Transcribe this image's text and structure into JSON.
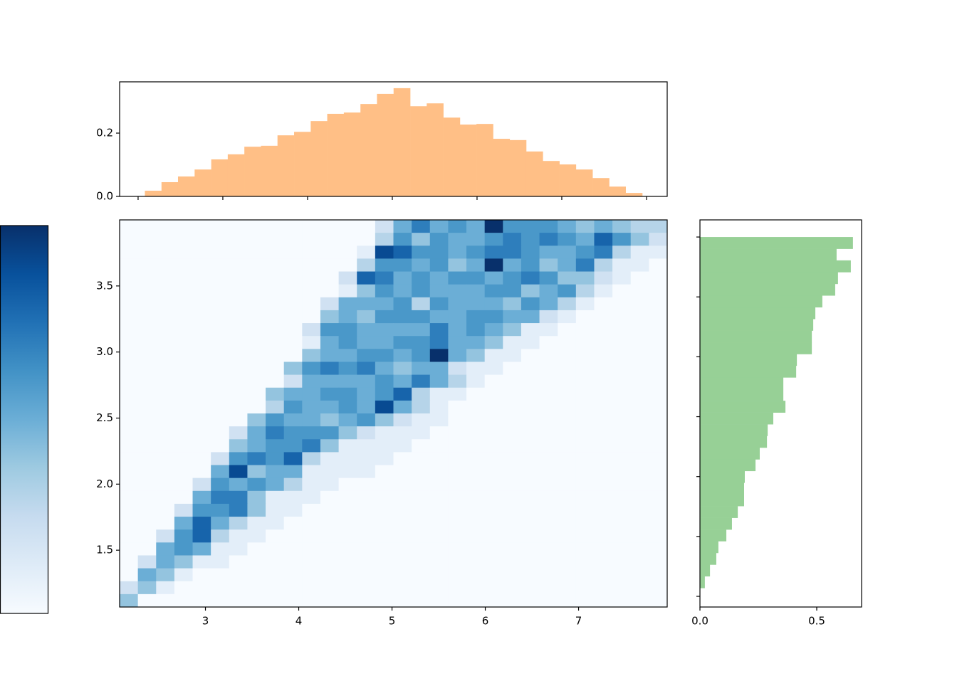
{
  "chart_data": [
    {
      "type": "heatmap",
      "xlim": [
        2.08,
        7.95
      ],
      "ylim": [
        1.07,
        4.0
      ],
      "clim": [
        0,
        10
      ],
      "colormap": [
        "#f7fbff",
        "#deebf7",
        "#c6dbef",
        "#9ecae1",
        "#6baed6",
        "#4292c6",
        "#2171b5",
        "#08519c",
        "#08306b"
      ],
      "colorbar": true,
      "xticks": [
        3,
        4,
        5,
        6,
        7
      ],
      "yticks": [
        1.5,
        {
          "value": 2,
          "label": "2.0"
        },
        2.5,
        {
          "value": 3,
          "label": "3.0"
        },
        3.5
      ],
      "z": [
        [
          0,
          0,
          0,
          0,
          0,
          0,
          0,
          0,
          0,
          0,
          0,
          0,
          0,
          0,
          2,
          5,
          7,
          5,
          6,
          5,
          10,
          6,
          6,
          6,
          5,
          4,
          5,
          4,
          3,
          3
        ],
        [
          0,
          0,
          0,
          0,
          0,
          0,
          0,
          0,
          0,
          0,
          0,
          0,
          0,
          0,
          3,
          6,
          4,
          6,
          5,
          5,
          6,
          7,
          6,
          7,
          6,
          5,
          8,
          6,
          4,
          2
        ],
        [
          0,
          0,
          0,
          0,
          0,
          0,
          0,
          0,
          0,
          0,
          0,
          0,
          0,
          1,
          9,
          8,
          6,
          6,
          5,
          6,
          7,
          7,
          6,
          5,
          5,
          6,
          7,
          3,
          1,
          1
        ],
        [
          0,
          0,
          0,
          0,
          0,
          0,
          0,
          0,
          0,
          0,
          0,
          0,
          0,
          3,
          6,
          6,
          5,
          6,
          4,
          5,
          10,
          5,
          6,
          4,
          5,
          7,
          3,
          1,
          1,
          0
        ],
        [
          0,
          0,
          0,
          0,
          0,
          0,
          0,
          0,
          0,
          0,
          0,
          0,
          2,
          8,
          7,
          5,
          6,
          5,
          6,
          6,
          5,
          6,
          7,
          6,
          4,
          4,
          2,
          1,
          0,
          0
        ],
        [
          0,
          0,
          0,
          0,
          0,
          0,
          0,
          0,
          0,
          0,
          0,
          0,
          1,
          4,
          6,
          5,
          6,
          5,
          5,
          5,
          6,
          6,
          4,
          5,
          6,
          3,
          1,
          0,
          0,
          0
        ],
        [
          0,
          0,
          0,
          0,
          0,
          0,
          0,
          0,
          0,
          0,
          0,
          2,
          5,
          5,
          5,
          6,
          3,
          6,
          5,
          5,
          5,
          4,
          6,
          5,
          3,
          1,
          0,
          0,
          0,
          0
        ],
        [
          0,
          0,
          0,
          0,
          0,
          0,
          0,
          0,
          0,
          0,
          0,
          4,
          5,
          4,
          6,
          6,
          6,
          5,
          5,
          6,
          6,
          5,
          5,
          2,
          1,
          0,
          0,
          0,
          0,
          0
        ],
        [
          0,
          0,
          0,
          0,
          0,
          0,
          0,
          0,
          0,
          0,
          2,
          6,
          6,
          5,
          5,
          5,
          5,
          7,
          5,
          6,
          5,
          4,
          1,
          1,
          0,
          0,
          0,
          0,
          0,
          0
        ],
        [
          0,
          0,
          0,
          0,
          0,
          0,
          0,
          0,
          0,
          0,
          1,
          5,
          6,
          5,
          5,
          6,
          6,
          7,
          5,
          5,
          4,
          1,
          1,
          0,
          0,
          0,
          0,
          0,
          0,
          0
        ],
        [
          0,
          0,
          0,
          0,
          0,
          0,
          0,
          0,
          0,
          0,
          4,
          5,
          5,
          6,
          6,
          5,
          6,
          10,
          5,
          4,
          1,
          1,
          0,
          0,
          0,
          0,
          0,
          0,
          0,
          0
        ],
        [
          0,
          0,
          0,
          0,
          0,
          0,
          0,
          0,
          0,
          4,
          6,
          7,
          6,
          7,
          5,
          4,
          5,
          5,
          2,
          1,
          1,
          0,
          0,
          0,
          0,
          0,
          0,
          0,
          0,
          0
        ],
        [
          0,
          0,
          0,
          0,
          0,
          0,
          0,
          0,
          0,
          2,
          5,
          5,
          5,
          5,
          6,
          5,
          7,
          5,
          3,
          1,
          0,
          0,
          0,
          0,
          0,
          0,
          0,
          0,
          0,
          0
        ],
        [
          0,
          0,
          0,
          0,
          0,
          0,
          0,
          0,
          4,
          5,
          5,
          6,
          6,
          5,
          6,
          8,
          3,
          1,
          1,
          0,
          0,
          0,
          0,
          0,
          0,
          0,
          0,
          0,
          0,
          0
        ],
        [
          0,
          0,
          0,
          0,
          0,
          0,
          0,
          0,
          3,
          6,
          5,
          5,
          6,
          5,
          9,
          5,
          3,
          1,
          0,
          0,
          0,
          0,
          0,
          0,
          0,
          0,
          0,
          0,
          0,
          0
        ],
        [
          0,
          0,
          0,
          0,
          0,
          0,
          0,
          4,
          6,
          5,
          5,
          4,
          5,
          6,
          4,
          2,
          1,
          1,
          0,
          0,
          0,
          0,
          0,
          0,
          0,
          0,
          0,
          0,
          0,
          0
        ],
        [
          0,
          0,
          0,
          0,
          0,
          0,
          2,
          5,
          7,
          6,
          6,
          6,
          4,
          2,
          1,
          1,
          1,
          0,
          0,
          0,
          0,
          0,
          0,
          0,
          0,
          0,
          0,
          0,
          0,
          0
        ],
        [
          0,
          0,
          0,
          0,
          0,
          0,
          4,
          5,
          6,
          6,
          7,
          4,
          1,
          1,
          1,
          1,
          0,
          0,
          0,
          0,
          0,
          0,
          0,
          0,
          0,
          0,
          0,
          0,
          0,
          0
        ],
        [
          0,
          0,
          0,
          0,
          0,
          2,
          6,
          7,
          6,
          8,
          3,
          1,
          1,
          1,
          1,
          0,
          0,
          0,
          0,
          0,
          0,
          0,
          0,
          0,
          0,
          0,
          0,
          0,
          0,
          0
        ],
        [
          0,
          0,
          0,
          0,
          0,
          5,
          9,
          4,
          5,
          5,
          1,
          1,
          1,
          1,
          0,
          0,
          0,
          0,
          0,
          0,
          0,
          0,
          0,
          0,
          0,
          0,
          0,
          0,
          0,
          0
        ],
        [
          0,
          0,
          0,
          0,
          2,
          6,
          5,
          6,
          5,
          3,
          1,
          1,
          0,
          0,
          0,
          0,
          0,
          0,
          0,
          0,
          0,
          0,
          0,
          0,
          0,
          0,
          0,
          0,
          0,
          0
        ],
        [
          0,
          0,
          0,
          0,
          5,
          7,
          7,
          4,
          1,
          1,
          1,
          0,
          0,
          0,
          0,
          0,
          0,
          0,
          0,
          0,
          0,
          0,
          0,
          0,
          0,
          0,
          0,
          0,
          0,
          0
        ],
        [
          0,
          0,
          0,
          2,
          6,
          6,
          7,
          4,
          1,
          1,
          0,
          0,
          0,
          0,
          0,
          0,
          0,
          0,
          0,
          0,
          0,
          0,
          0,
          0,
          0,
          0,
          0,
          0,
          0,
          0
        ],
        [
          0,
          0,
          0,
          5,
          8,
          5,
          3,
          1,
          1,
          0,
          0,
          0,
          0,
          0,
          0,
          0,
          0,
          0,
          0,
          0,
          0,
          0,
          0,
          0,
          0,
          0,
          0,
          0,
          0,
          0
        ],
        [
          0,
          0,
          2,
          6,
          8,
          3,
          1,
          1,
          0,
          0,
          0,
          0,
          0,
          0,
          0,
          0,
          0,
          0,
          0,
          0,
          0,
          0,
          0,
          0,
          0,
          0,
          0,
          0,
          0,
          0
        ],
        [
          0,
          0,
          5,
          6,
          5,
          1,
          1,
          0,
          0,
          0,
          0,
          0,
          0,
          0,
          0,
          0,
          0,
          0,
          0,
          0,
          0,
          0,
          0,
          0,
          0,
          0,
          0,
          0,
          0,
          0
        ],
        [
          0,
          2,
          5,
          4,
          1,
          1,
          0,
          0,
          0,
          0,
          0,
          0,
          0,
          0,
          0,
          0,
          0,
          0,
          0,
          0,
          0,
          0,
          0,
          0,
          0,
          0,
          0,
          0,
          0,
          0
        ],
        [
          0,
          5,
          4,
          1,
          0,
          0,
          0,
          0,
          0,
          0,
          0,
          0,
          0,
          0,
          0,
          0,
          0,
          0,
          0,
          0,
          0,
          0,
          0,
          0,
          0,
          0,
          0,
          0,
          0,
          0
        ],
        [
          2,
          4,
          1,
          0,
          0,
          0,
          0,
          0,
          0,
          0,
          0,
          0,
          0,
          0,
          0,
          0,
          0,
          0,
          0,
          0,
          0,
          0,
          0,
          0,
          0,
          0,
          0,
          0,
          0,
          0
        ],
        [
          4,
          0,
          0,
          0,
          0,
          0,
          0,
          0,
          0,
          0,
          0,
          0,
          0,
          0,
          0,
          0,
          0,
          0,
          0,
          0,
          0,
          0,
          0,
          0,
          0,
          0,
          0,
          0,
          0,
          0
        ]
      ]
    },
    {
      "type": "histogram",
      "orientation": "vertical",
      "color": "#ffbf86",
      "xlim": [
        1.782,
        8.244
      ],
      "ylim": [
        0,
        0.362
      ],
      "xticks": [
        2,
        3,
        4,
        5,
        6,
        7,
        8
      ],
      "xticklabels": false,
      "yticks": [
        {
          "value": 0,
          "label": "0.0"
        },
        {
          "value": 0.2,
          "label": "0.2"
        }
      ],
      "bins": [
        2.08,
        2.276,
        2.471,
        2.667,
        2.863,
        3.058,
        3.254,
        3.45,
        3.645,
        3.841,
        4.037,
        4.232,
        4.428,
        4.624,
        4.819,
        5.015,
        5.211,
        5.406,
        5.602,
        5.798,
        5.993,
        6.189,
        6.385,
        6.58,
        6.776,
        6.972,
        7.167,
        7.363,
        7.559,
        7.754,
        7.95
      ],
      "values": [
        0.018,
        0.045,
        0.063,
        0.085,
        0.117,
        0.133,
        0.157,
        0.16,
        0.193,
        0.204,
        0.238,
        0.261,
        0.265,
        0.292,
        0.324,
        0.342,
        0.285,
        0.294,
        0.249,
        0.227,
        0.229,
        0.182,
        0.178,
        0.142,
        0.112,
        0.101,
        0.085,
        0.058,
        0.031,
        0.011
      ]
    },
    {
      "type": "histogram",
      "orientation": "horizontal",
      "color": "#97d096",
      "xlim": [
        0,
        0.692
      ],
      "ylim": [
        0.911,
        4.143
      ],
      "xticks": [
        {
          "value": 0,
          "label": "0.0"
        },
        {
          "value": 0.5,
          "label": "0.5"
        }
      ],
      "yticks": [
        1,
        1.5,
        2,
        2.5,
        3,
        3.5,
        4
      ],
      "yticklabels": false,
      "bins": [
        1.07,
        1.168,
        1.265,
        1.363,
        1.461,
        1.558,
        1.656,
        1.754,
        1.851,
        1.949,
        2.047,
        2.144,
        2.242,
        2.34,
        2.437,
        2.535,
        2.633,
        2.73,
        2.828,
        2.926,
        3.023,
        3.121,
        3.219,
        3.316,
        3.414,
        3.512,
        3.609,
        3.707,
        3.805,
        3.902,
        4.0
      ],
      "values": [
        0.021,
        0.043,
        0.07,
        0.079,
        0.113,
        0.137,
        0.162,
        0.189,
        0.189,
        0.192,
        0.238,
        0.256,
        0.287,
        0.29,
        0.314,
        0.366,
        0.357,
        0.357,
        0.412,
        0.415,
        0.479,
        0.479,
        0.485,
        0.494,
        0.524,
        0.579,
        0.591,
        0.646,
        0.585,
        0.655
      ]
    }
  ]
}
